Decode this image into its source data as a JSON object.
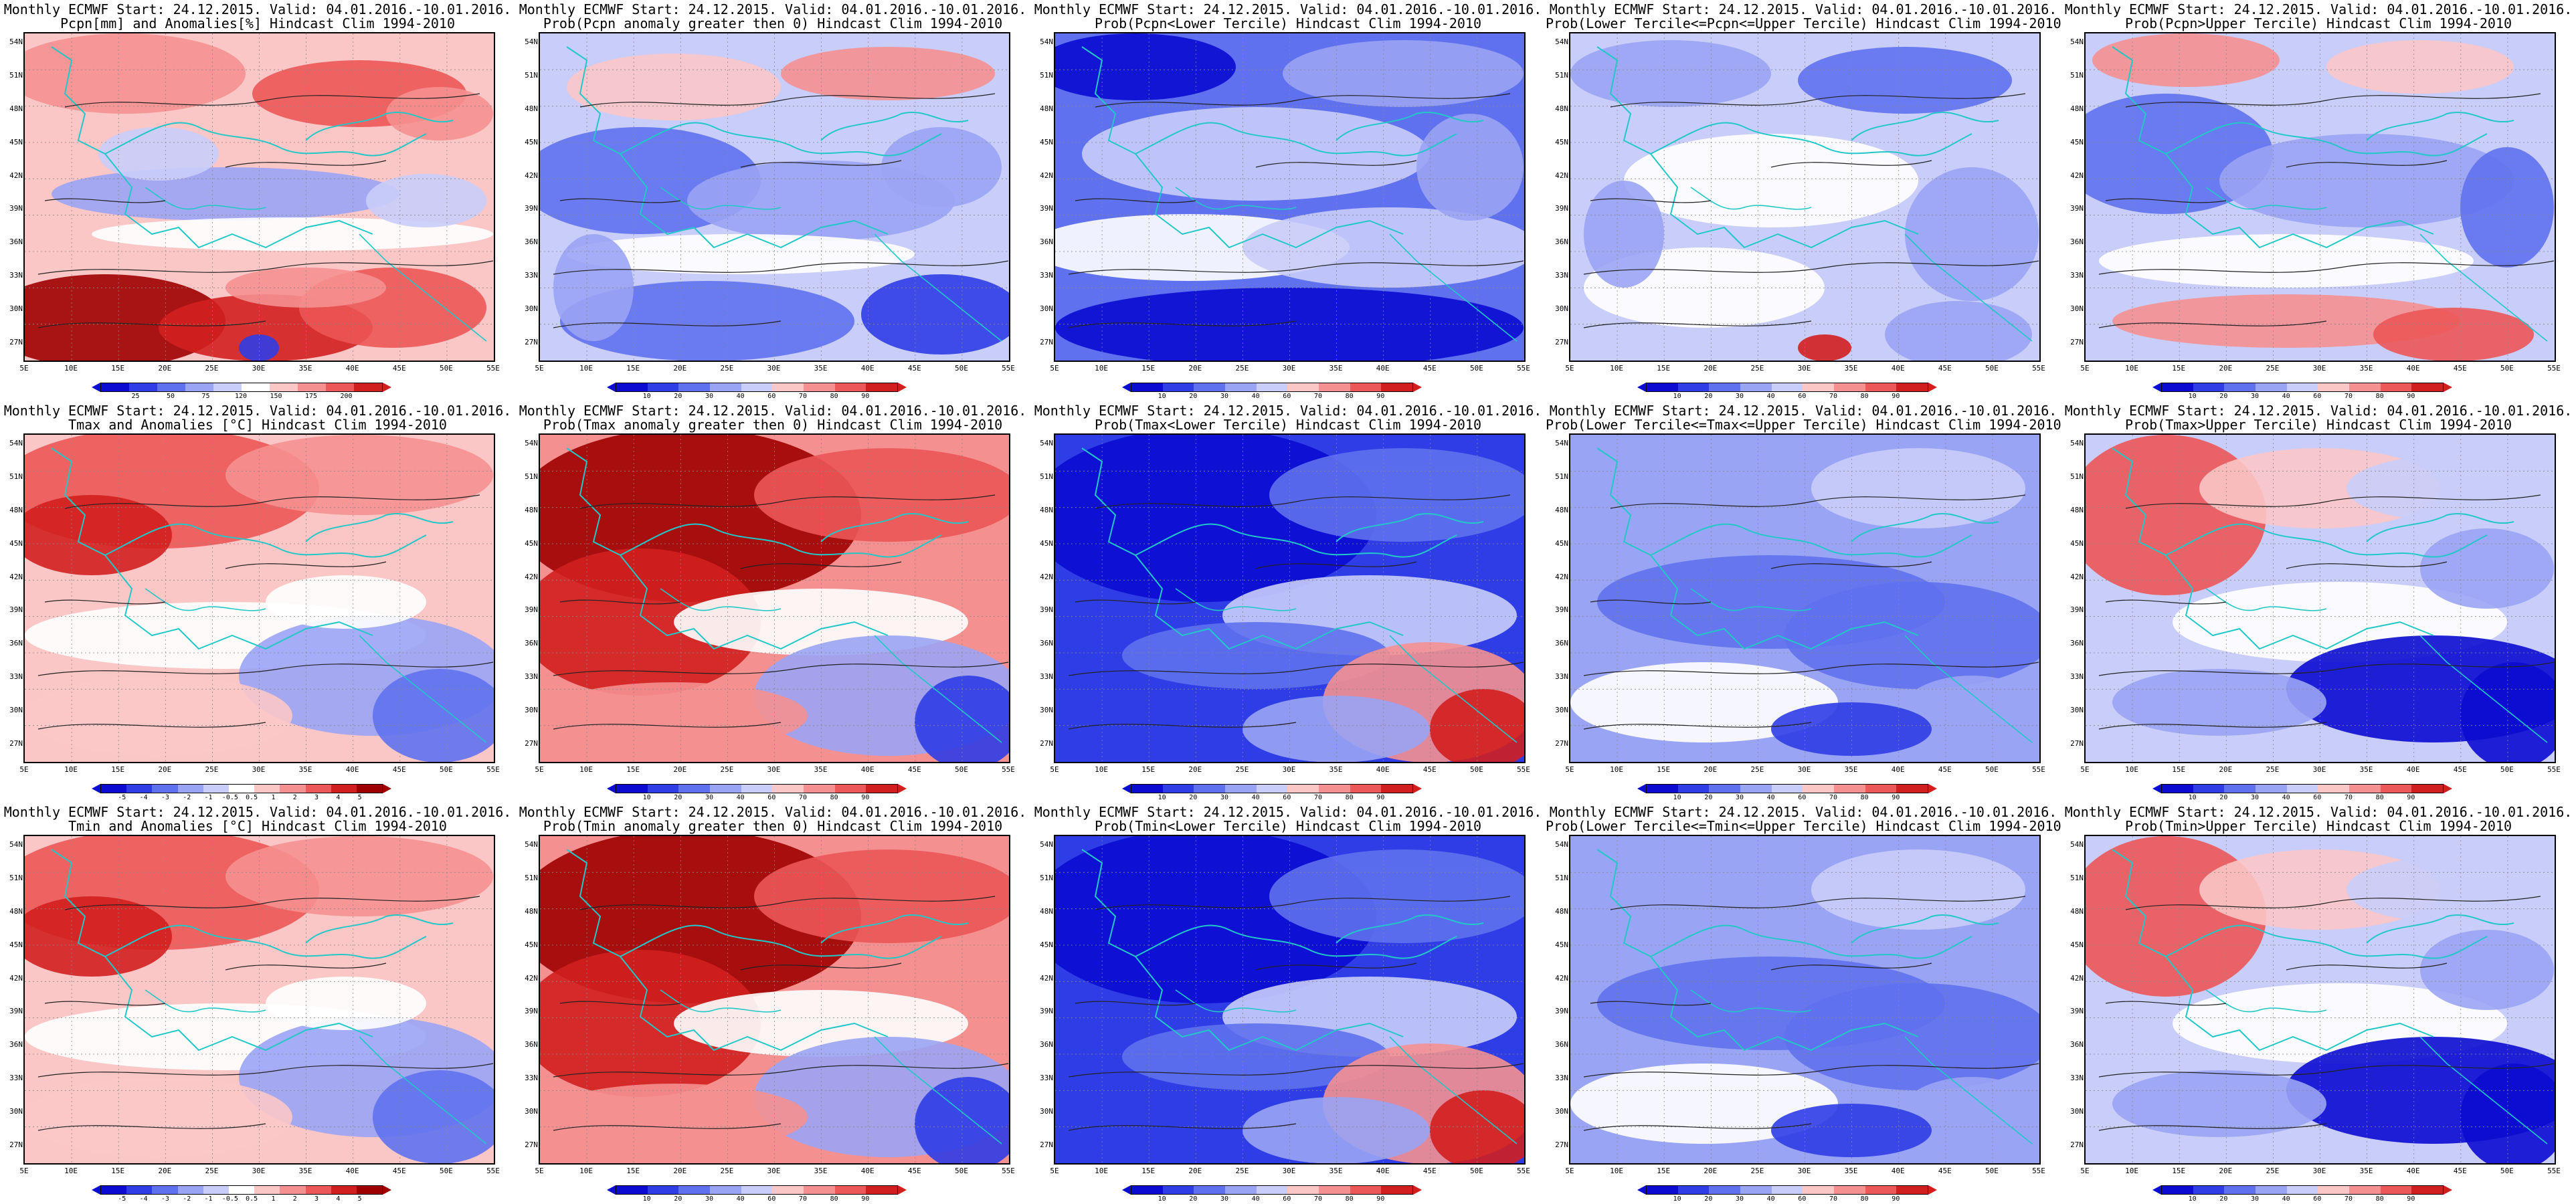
{
  "colors": {
    "blues": [
      "#0b0bd2",
      "#2f3de6",
      "#5f71ee",
      "#9aa4f4",
      "#c9cdfa",
      "#ffffff"
    ],
    "reds": [
      "#ffffff",
      "#fbc6c6",
      "#f59090",
      "#ec5757",
      "#d11f1f",
      "#9e0000"
    ],
    "coast": "#22c8c8",
    "contour": "#222222"
  },
  "axes": {
    "y_labels": [
      "54N",
      "51N",
      "48N",
      "45N",
      "42N",
      "39N",
      "36N",
      "33N",
      "30N",
      "27N"
    ],
    "x_labels": [
      "5E",
      "10E",
      "15E",
      "20E",
      "25E",
      "30E",
      "35E",
      "40E",
      "45E",
      "50E",
      "55E"
    ]
  },
  "colorbars": {
    "pcpn_anom": [
      "25",
      "50",
      "75",
      "120",
      "150",
      "175",
      "200"
    ],
    "temp_anom": [
      "-5",
      "-4",
      "-3",
      "-2",
      "-1",
      "-0.5",
      "0.5",
      "1",
      "2",
      "3",
      "4",
      "5"
    ],
    "prob": [
      "10",
      "20",
      "30",
      "40",
      "60",
      "70",
      "80",
      "90"
    ]
  },
  "panels": [
    {
      "title1": "Monthly ECMWF Start: 24.12.2015. Valid: 04.01.2016.-10.01.2016.",
      "title2": "Pcpn[mm] and Anomalies[%] Hindcast Clim 1994-2010",
      "cbar": "pcpn_anom",
      "style": "pcpn_anom"
    },
    {
      "title1": "Monthly ECMWF Start: 24.12.2015. Valid: 04.01.2016.-10.01.2016.",
      "title2": "Prob(Pcpn anomaly greater then 0) Hindcast Clim 1994-2010",
      "cbar": "prob",
      "style": "pcpn_pos"
    },
    {
      "title1": "Monthly ECMWF Start: 24.12.2015. Valid: 04.01.2016.-10.01.2016.",
      "title2": "Prob(Pcpn<Lower Tercile) Hindcast Clim 1994-2010",
      "cbar": "prob",
      "style": "pcpn_low"
    },
    {
      "title1": "Monthly ECMWF Start: 24.12.2015. Valid: 04.01.2016.-10.01.2016.",
      "title2": "Prob(Lower Tercile<=Pcpn<=Upper Tercile) Hindcast Clim 1994-2010",
      "cbar": "prob",
      "style": "pcpn_mid"
    },
    {
      "title1": "Monthly ECMWF Start: 24.12.2015. Valid: 04.01.2016.-10.01.2016.",
      "title2": "Prob(Pcpn>Upper Tercile) Hindcast Clim 1994-2010",
      "cbar": "prob",
      "style": "pcpn_up"
    },
    {
      "title1": "Monthly ECMWF Start: 24.12.2015. Valid: 04.01.2016.-10.01.2016.",
      "title2": "Tmax and Anomalies [°C] Hindcast Clim 1994-2010",
      "cbar": "temp_anom",
      "style": "warm_north"
    },
    {
      "title1": "Monthly ECMWF Start: 24.12.2015. Valid: 04.01.2016.-10.01.2016.",
      "title2": "Prob(Tmax anomaly greater then 0) Hindcast Clim 1994-2010",
      "cbar": "prob",
      "style": "hot_north"
    },
    {
      "title1": "Monthly ECMWF Start: 24.12.2015. Valid: 04.01.2016.-10.01.2016.",
      "title2": "Prob(Tmax<Lower Tercile) Hindcast Clim 1994-2010",
      "cbar": "prob",
      "style": "cold_se_red"
    },
    {
      "title1": "Monthly ECMWF Start: 24.12.2015. Valid: 04.01.2016.-10.01.2016.",
      "title2": "Prob(Lower Tercile<=Tmax<=Upper Tercile) Hindcast Clim 1994-2010",
      "cbar": "prob",
      "style": "mid_blue"
    },
    {
      "title1": "Monthly ECMWF Start: 24.12.2015. Valid: 04.01.2016.-10.01.2016.",
      "title2": "Prob(Tmax>Upper Tercile) Hindcast Clim 1994-2010",
      "cbar": "prob",
      "style": "hot_west_blue_se"
    },
    {
      "title1": "Monthly ECMWF Start: 24.12.2015. Valid: 04.01.2016.-10.01.2016.",
      "title2": "Tmin and Anomalies [°C] Hindcast Clim 1994-2010",
      "cbar": "temp_anom",
      "style": "warm_north"
    },
    {
      "title1": "Monthly ECMWF Start: 24.12.2015. Valid: 04.01.2016.-10.01.2016.",
      "title2": "Prob(Tmin anomaly greater then 0) Hindcast Clim 1994-2010",
      "cbar": "prob",
      "style": "hot_north"
    },
    {
      "title1": "Monthly ECMWF Start: 24.12.2015. Valid: 04.01.2016.-10.01.2016.",
      "title2": "Prob(Tmin<Lower Tercile) Hindcast Clim 1994-2010",
      "cbar": "prob",
      "style": "cold_se_red"
    },
    {
      "title1": "Monthly ECMWF Start: 24.12.2015. Valid: 04.01.2016.-10.01.2016.",
      "title2": "Prob(Lower Tercile<=Tmin<=Upper Tercile) Hindcast Clim 1994-2010",
      "cbar": "prob",
      "style": "mid_blue"
    },
    {
      "title1": "Monthly ECMWF Start: 24.12.2015. Valid: 04.01.2016.-10.01.2016.",
      "title2": "Prob(Tmin>Upper Tercile) Hindcast Clim 1994-2010",
      "cbar": "prob",
      "style": "hot_west_blue_se"
    }
  ]
}
